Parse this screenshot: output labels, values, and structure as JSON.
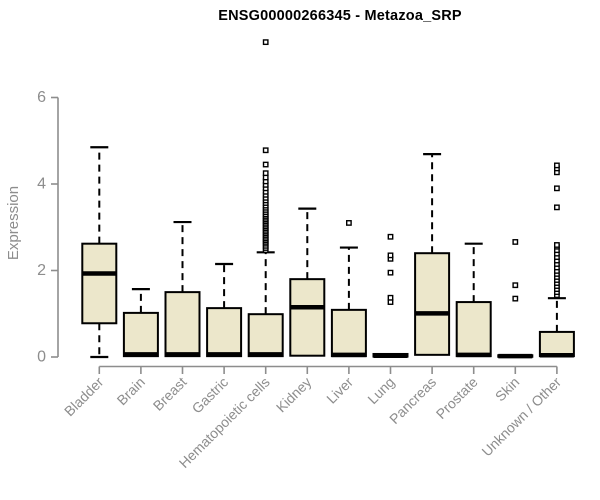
{
  "chart_data": {
    "type": "boxplot",
    "title": "ENSG00000266345 - Metazoa_SRP",
    "ylabel": "Expression",
    "xlabel": "",
    "ylim": [
      0,
      6
    ],
    "yticks": [
      "0",
      "2",
      "4",
      "6"
    ],
    "grid": false,
    "legend": "none",
    "categories": [
      "Bladder",
      "Brain",
      "Breast",
      "Gastric",
      "Hematopoietic cells",
      "Kidney",
      "Liver",
      "Lung",
      "Pancreas",
      "Prostate",
      "Skin",
      "Unknown / Other"
    ],
    "boxes": [
      {
        "category": "Bladder",
        "whisker_low": 0.0,
        "q1": 0.78,
        "median": 1.93,
        "q3": 2.62,
        "whisker_high": 4.85,
        "outliers": []
      },
      {
        "category": "Brain",
        "whisker_low": 0.02,
        "q1": 0.02,
        "median": 0.06,
        "q3": 1.02,
        "whisker_high": 1.57,
        "outliers": []
      },
      {
        "category": "Breast",
        "whisker_low": 0.02,
        "q1": 0.02,
        "median": 0.06,
        "q3": 1.5,
        "whisker_high": 3.12,
        "outliers": []
      },
      {
        "category": "Gastric",
        "whisker_low": 0.02,
        "q1": 0.02,
        "median": 0.06,
        "q3": 1.13,
        "whisker_high": 2.15,
        "outliers": []
      },
      {
        "category": "Hematopoietic cells",
        "whisker_low": 0.02,
        "q1": 0.02,
        "median": 0.06,
        "q3": 0.99,
        "whisker_high": 2.42,
        "outliers": [
          2.47,
          2.52,
          2.57,
          2.62,
          2.66,
          2.7,
          2.74,
          2.78,
          2.82,
          2.86,
          2.9,
          2.94,
          2.98,
          3.02,
          3.06,
          3.1,
          3.14,
          3.18,
          3.22,
          3.26,
          3.3,
          3.35,
          3.4,
          3.45,
          3.5,
          3.56,
          3.62,
          3.68,
          3.75,
          3.82,
          3.9,
          3.98,
          4.06,
          4.15,
          4.25,
          4.45,
          4.78,
          7.28
        ]
      },
      {
        "category": "Kidney",
        "whisker_low": 0.03,
        "q1": 0.03,
        "median": 1.15,
        "q3": 1.8,
        "whisker_high": 3.43,
        "outliers": []
      },
      {
        "category": "Liver",
        "whisker_low": 0.02,
        "q1": 0.02,
        "median": 0.05,
        "q3": 1.09,
        "whisker_high": 2.53,
        "outliers": [
          3.1
        ]
      },
      {
        "category": "Lung",
        "whisker_low": 0.01,
        "q1": 0.01,
        "median": 0.03,
        "q3": 0.07,
        "whisker_high": 0.07,
        "outliers": [
          1.27,
          1.37,
          1.95,
          2.27,
          2.35,
          2.78
        ]
      },
      {
        "category": "Pancreas",
        "whisker_low": 0.05,
        "q1": 0.05,
        "median": 1.01,
        "q3": 2.4,
        "whisker_high": 4.69,
        "outliers": []
      },
      {
        "category": "Prostate",
        "whisker_low": 0.02,
        "q1": 0.02,
        "median": 0.05,
        "q3": 1.27,
        "whisker_high": 2.62,
        "outliers": []
      },
      {
        "category": "Skin",
        "whisker_low": 0.01,
        "q1": 0.01,
        "median": 0.02,
        "q3": 0.04,
        "whisker_high": 0.04,
        "outliers": [
          1.35,
          1.66,
          2.66
        ]
      },
      {
        "category": "Unknown / Other",
        "whisker_low": 0.02,
        "q1": 0.02,
        "median": 0.04,
        "q3": 0.58,
        "whisker_high": 1.36,
        "outliers": [
          1.43,
          1.5,
          1.57,
          1.64,
          1.71,
          1.78,
          1.85,
          1.92,
          1.99,
          2.07,
          2.15,
          2.23,
          2.31,
          2.39,
          2.47,
          2.55,
          2.59,
          3.46,
          3.9,
          4.27,
          4.36,
          4.43
        ]
      }
    ],
    "colors": {
      "box_fill": "#ece7cb",
      "box_border": "#000000",
      "median": "#000000",
      "whisker": "#000000",
      "outlier_stroke": "#000000",
      "outlier_fill": "#ffffff",
      "axis": "#8d8d8d",
      "axis_text": "#8d8d8d",
      "title_text": "#000000",
      "background": "#ffffff"
    }
  }
}
